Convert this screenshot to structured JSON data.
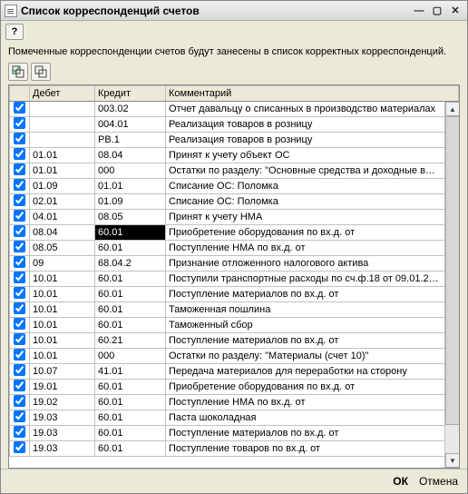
{
  "window": {
    "title": "Список корреспонденций счетов"
  },
  "help_label": "?",
  "description": "Помеченные корреспонденции счетов будут занесены в список корректных корреспонденций.",
  "table": {
    "col_check": "",
    "col_debit": "Дебет",
    "col_credit": "Кредит",
    "col_comment": "Комментарий",
    "rows": [
      {
        "chk": true,
        "debit": "",
        "credit": "003.02",
        "comment": "Отчет давальцу о списанных в производство материалах",
        "sel": false
      },
      {
        "chk": true,
        "debit": "",
        "credit": "004.01",
        "comment": "Реализация товаров в розницу",
        "sel": false
      },
      {
        "chk": true,
        "debit": "",
        "credit": "РВ.1",
        "comment": "Реализация товаров в розницу",
        "sel": false
      },
      {
        "chk": true,
        "debit": "01.01",
        "credit": "08.04",
        "comment": "Принят к учету объект ОС",
        "sel": false
      },
      {
        "chk": true,
        "debit": "01.01",
        "credit": "000",
        "comment": "Остатки по разделу: \"Основные средства и доходные в…",
        "sel": false
      },
      {
        "chk": true,
        "debit": "01.09",
        "credit": "01.01",
        "comment": "Списание ОС: Поломка",
        "sel": false
      },
      {
        "chk": true,
        "debit": "02.01",
        "credit": "01.09",
        "comment": "Списание ОС: Поломка",
        "sel": false
      },
      {
        "chk": true,
        "debit": "04.01",
        "credit": "08.05",
        "comment": "Принят к учету НМА",
        "sel": false
      },
      {
        "chk": true,
        "debit": "08.04",
        "credit": "60.01",
        "comment": "Приобретение оборудования по вх.д. от",
        "sel": true
      },
      {
        "chk": true,
        "debit": "08.05",
        "credit": "60.01",
        "comment": "Поступление НМА по вх.д. от",
        "sel": false
      },
      {
        "chk": true,
        "debit": "09",
        "credit": "68.04.2",
        "comment": "Признание отложенного налогового актива",
        "sel": false
      },
      {
        "chk": true,
        "debit": "10.01",
        "credit": "60.01",
        "comment": "Поступили транспортные расходы по сч.ф.18 от 09.01.2…",
        "sel": false
      },
      {
        "chk": true,
        "debit": "10.01",
        "credit": "60.01",
        "comment": "Поступление материалов по вх.д. от",
        "sel": false
      },
      {
        "chk": true,
        "debit": "10.01",
        "credit": "60.01",
        "comment": "Таможенная пошлина",
        "sel": false
      },
      {
        "chk": true,
        "debit": "10.01",
        "credit": "60.01",
        "comment": "Таможенный сбор",
        "sel": false
      },
      {
        "chk": true,
        "debit": "10.01",
        "credit": "60.21",
        "comment": "Поступление материалов по вх.д. от",
        "sel": false
      },
      {
        "chk": true,
        "debit": "10.01",
        "credit": "000",
        "comment": "Остатки по разделу: \"Материалы (счет 10)\"",
        "sel": false
      },
      {
        "chk": true,
        "debit": "10.07",
        "credit": "41.01",
        "comment": "Передача материалов для переработки на сторону",
        "sel": false
      },
      {
        "chk": true,
        "debit": "19.01",
        "credit": "60.01",
        "comment": "Приобретение оборудования по вх.д. от",
        "sel": false
      },
      {
        "chk": true,
        "debit": "19.02",
        "credit": "60.01",
        "comment": "Поступление НМА по вх.д. от",
        "sel": false
      },
      {
        "chk": true,
        "debit": "19.03",
        "credit": "60.01",
        "comment": "Паста шоколадная",
        "sel": false
      },
      {
        "chk": true,
        "debit": "19.03",
        "credit": "60.01",
        "comment": "Поступление материалов по вх.д. от",
        "sel": false
      },
      {
        "chk": true,
        "debit": "19.03",
        "credit": "60.01",
        "comment": "Поступление товаров по вх.д. от",
        "sel": false
      }
    ]
  },
  "footer": {
    "ok": "ОК",
    "cancel": "Отмена"
  }
}
